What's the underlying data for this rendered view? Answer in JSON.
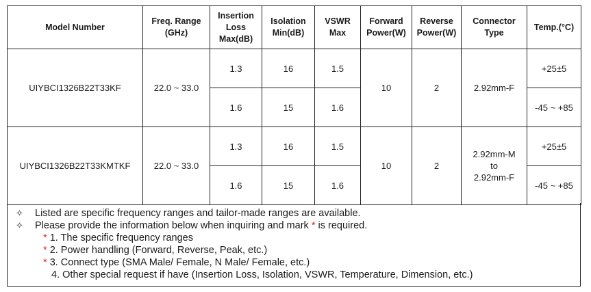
{
  "headers": {
    "model": "Model Number",
    "freq_1": "Freq. Range",
    "freq_2": "(GHz)",
    "il_1": "Insertion",
    "il_2": "Loss",
    "il_3": "Max(dB)",
    "iso_1": "Isolation",
    "iso_2": "Min(dB)",
    "vswr_1": "VSWR",
    "vswr_2": "Max",
    "fwd_1": "Forward",
    "fwd_2": "Power(W)",
    "rev_1": "Reverse",
    "rev_2": "Power(W)",
    "conn_1": "Connector",
    "conn_2": "Type",
    "temp": "Temp.(°C)"
  },
  "rows": [
    {
      "model": "UIYBCI1326B22T33KF",
      "freq": "22.0 ~ 33.0",
      "il": [
        "1.3",
        "1.6"
      ],
      "iso": [
        "16",
        "15"
      ],
      "vswr": [
        "1.5",
        "1.6"
      ],
      "fwd": "10",
      "rev": "2",
      "conn_1": "2.92mm-F",
      "conn_2": "",
      "conn_3": "",
      "temp": [
        "+25±5",
        "-45 ~ +85"
      ]
    },
    {
      "model": "UIYBCI1326B22T33KMTKF",
      "freq": "22.0 ~ 33.0",
      "il": [
        "1.3",
        "1.6"
      ],
      "iso": [
        "16",
        "15"
      ],
      "vswr": [
        "1.5",
        "1.6"
      ],
      "fwd": "10",
      "rev": "2",
      "conn_1": "2.92mm-M",
      "conn_2": "to",
      "conn_3": "2.92mm-F",
      "temp": [
        "+25±5",
        "-45 ~ +85"
      ]
    }
  ],
  "notes": {
    "bullet": "✧",
    "star": "*",
    "line_1": "Listed are specific frequency ranges and tailor-made ranges are available.",
    "line_2a": "Please provide the information below when inquiring and mark",
    "line_2b": "is required.",
    "sub_1": "1. The specific frequency ranges",
    "sub_2": "2. Power handling (Forward, Reverse, Peak, etc.)",
    "sub_3": "3. Connect type (SMA Male/ Female, N Male/ Female, etc.)",
    "sub_4": "4. Other special request if have (Insertion Loss, Isolation, VSWR, Temperature, Dimension, etc.)"
  }
}
